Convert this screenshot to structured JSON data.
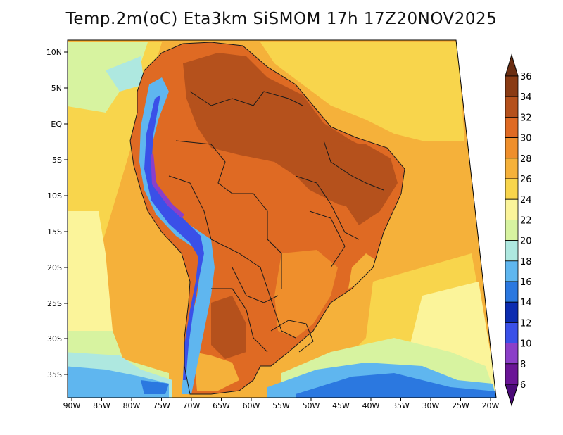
{
  "title": "Temp.2m(oC) Eta3km SiSMOM 17h 17Z20NOV2025",
  "axes": {
    "lat_labels": [
      "10N",
      "5N",
      "EQ",
      "5S",
      "10S",
      "15S",
      "20S",
      "25S",
      "30S",
      "35S"
    ],
    "lon_labels": [
      "90W",
      "85W",
      "80W",
      "75W",
      "70W",
      "65W",
      "60W",
      "55W",
      "50W",
      "45W",
      "40W",
      "35W",
      "30W",
      "25W",
      "20W"
    ]
  },
  "colorbar": {
    "labels": [
      "36",
      "34",
      "32",
      "30",
      "28",
      "26",
      "24",
      "22",
      "20",
      "18",
      "16",
      "14",
      "12",
      "10",
      "8",
      "6"
    ],
    "colors": {
      "above_36": "#6b2e12",
      "34_36": "#8a3b14",
      "32_34": "#b5511c",
      "30_32": "#df6a23",
      "28_30": "#ef8f2c",
      "26_28": "#f5b13a",
      "24_26": "#f8d54c",
      "22_24": "#fbf49a",
      "20_22": "#d7f3a0",
      "18_20": "#aee8e0",
      "16_18": "#5fb6ef",
      "14_16": "#2b78e0",
      "12_14": "#0c2cb0",
      "10_12": "#3a50e8",
      "8_10": "#8b3fc8",
      "6_8": "#6a1596",
      "below_6": "#4b0a78"
    }
  },
  "colors": {
    "sea_warm": "#f5b13a",
    "sea_mid": "#f8d54c",
    "sea_cool": "#fbf49a",
    "land_hot": "#df6a23",
    "land_hotter": "#b5511c",
    "border_line": "#1a1a1a"
  }
}
